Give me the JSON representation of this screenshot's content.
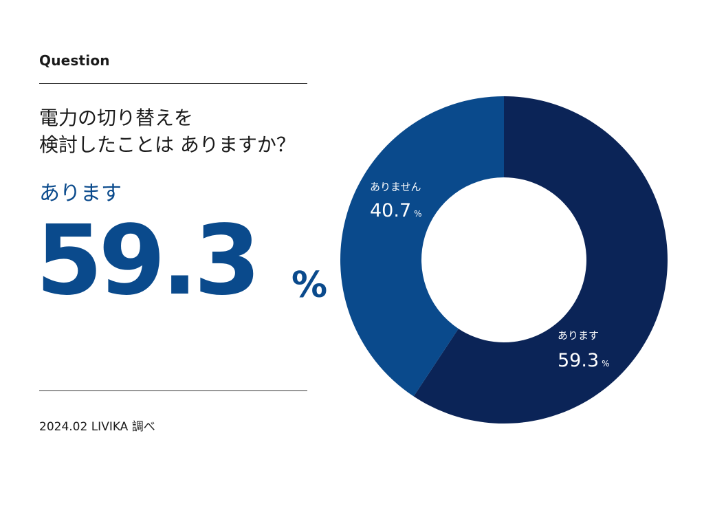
{
  "header": {
    "question_label": "Question",
    "question_line1": "電力の切り替えを",
    "question_line2": "検討したことは ありますか？"
  },
  "highlight": {
    "label": "あります",
    "value": "59.3",
    "unit": "%"
  },
  "footer": {
    "source": "2024.02 LIVIKA 調べ"
  },
  "colors": {
    "yes": "#0b2457",
    "no": "#0a4a8c",
    "accent_text": "#0a4a8c",
    "label_text": "#ffffff"
  },
  "chart_data": {
    "type": "pie",
    "donut": true,
    "categories": [
      "あります",
      "ありません"
    ],
    "values": [
      59.3,
      40.7
    ],
    "unit": "%",
    "title": "",
    "labels": [
      {
        "name": "あります",
        "value_text": "59.3",
        "unit": "%"
      },
      {
        "name": "ありません",
        "value_text": "40.7",
        "unit": "%"
      }
    ]
  }
}
